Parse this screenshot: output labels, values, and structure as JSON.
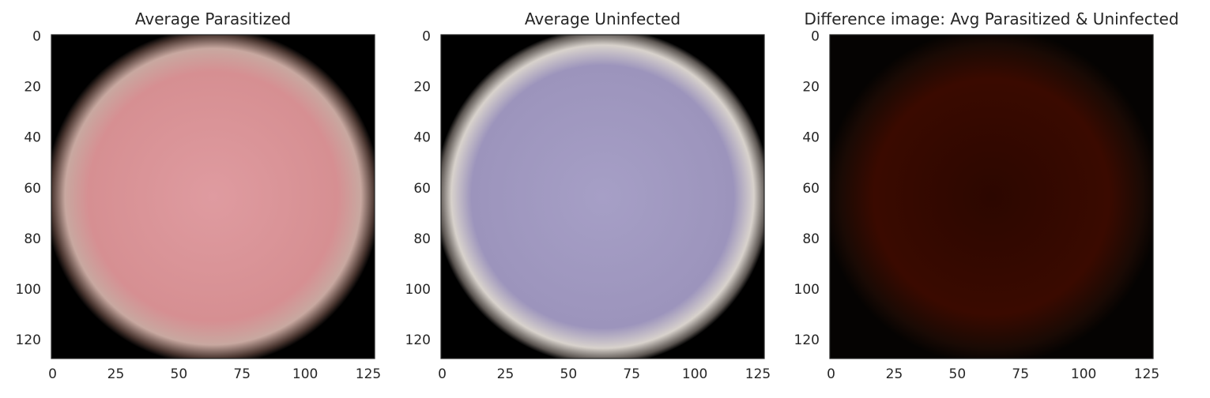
{
  "chart_data": [
    {
      "type": "image",
      "title": "Average Parasitized",
      "xlim": [
        -0.5,
        127.5
      ],
      "ylim": [
        127.5,
        -0.5
      ],
      "xticks": [
        0,
        25,
        50,
        75,
        100,
        125
      ],
      "yticks": [
        0,
        20,
        40,
        60,
        80,
        100,
        120
      ],
      "image": {
        "background": "#000000",
        "cell_color": "#d68f92",
        "cell_highlight": "#df9ba0",
        "edge_color": "#c8a8a0",
        "rim": "soft"
      }
    },
    {
      "type": "image",
      "title": "Average Uninfected",
      "xlim": [
        -0.5,
        127.5
      ],
      "ylim": [
        127.5,
        -0.5
      ],
      "xticks": [
        0,
        25,
        50,
        75,
        100,
        125
      ],
      "yticks": [
        0,
        20,
        40,
        60,
        80,
        100,
        120
      ],
      "image": {
        "background": "#000000",
        "cell_color": "#9c94bc",
        "cell_highlight": "#a69fc6",
        "edge_color": "#d8d2cc",
        "rim": "bright"
      }
    },
    {
      "type": "image",
      "title": "Difference image: Avg Parasitized & Uninfected",
      "xlim": [
        -0.5,
        127.5
      ],
      "ylim": [
        127.5,
        -0.5
      ],
      "xticks": [
        0,
        25,
        50,
        75,
        100,
        125
      ],
      "yticks": [
        0,
        20,
        40,
        60,
        80,
        100,
        120
      ],
      "image": {
        "background": "#050302",
        "cell_color": "#3a0a00",
        "cell_highlight": "#2c0700",
        "edge_color": "#1a0a04",
        "rim": "dark"
      }
    }
  ]
}
